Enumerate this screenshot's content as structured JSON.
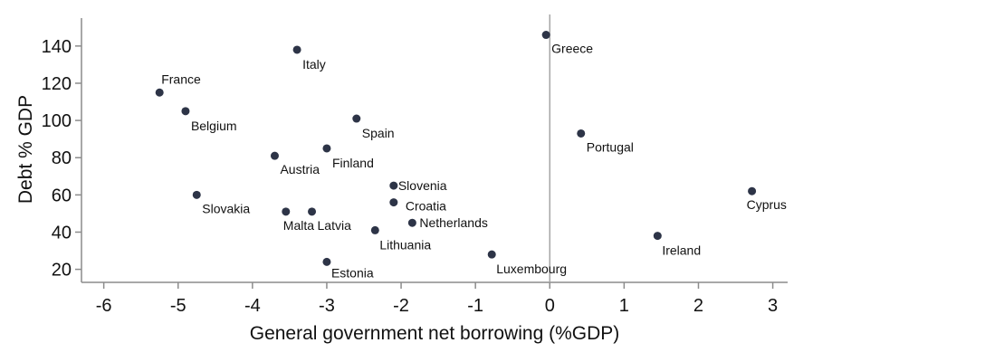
{
  "chart_data": {
    "type": "scatter",
    "title": "",
    "xlabel": "General government net borrowing (%GDP)",
    "ylabel": "Debt % GDP",
    "xlim": [
      -6.3,
      3.2
    ],
    "ylim": [
      13,
      155
    ],
    "xticks": [
      -6,
      -5,
      -4,
      -3,
      -2,
      -1,
      0,
      1,
      2,
      3
    ],
    "yticks": [
      20,
      40,
      60,
      80,
      100,
      120,
      140
    ],
    "grid": false,
    "reference_line_x": 0,
    "colors": {
      "point": "#2d3447",
      "reference_line": "#a6a6a6",
      "axis": "#8c8c8c",
      "text": "#111111"
    },
    "points": [
      {
        "label": "Greece",
        "x": -0.05,
        "y": 146,
        "label_dx": 6,
        "label_dy": 20
      },
      {
        "label": "Italy",
        "x": -3.4,
        "y": 138,
        "label_dx": 6,
        "label_dy": 21
      },
      {
        "label": "France",
        "x": -5.25,
        "y": 115,
        "label_dx": 2,
        "label_dy": -10
      },
      {
        "label": "Belgium",
        "x": -4.9,
        "y": 105,
        "label_dx": 6,
        "label_dy": 21
      },
      {
        "label": "Spain",
        "x": -2.6,
        "y": 101,
        "label_dx": 6,
        "label_dy": 21
      },
      {
        "label": "Portugal",
        "x": 0.42,
        "y": 93,
        "label_dx": 6,
        "label_dy": 20
      },
      {
        "label": "Finland",
        "x": -3.0,
        "y": 85,
        "label_dx": 6,
        "label_dy": 21
      },
      {
        "label": "Austria",
        "x": -3.7,
        "y": 81,
        "label_dx": 6,
        "label_dy": 20
      },
      {
        "label": "Slovenia",
        "x": -2.1,
        "y": 65,
        "label_dx": 5,
        "label_dy": 5
      },
      {
        "label": "Cyprus",
        "x": 2.72,
        "y": 62,
        "label_dx": -6,
        "label_dy": 20
      },
      {
        "label": "Slovakia",
        "x": -4.75,
        "y": 60,
        "label_dx": 6,
        "label_dy": 20
      },
      {
        "label": "Croatia",
        "x": -2.1,
        "y": 56,
        "label_dx": 13,
        "label_dy": 9
      },
      {
        "label": "Malta",
        "x": -3.55,
        "y": 51,
        "label_dx": -3,
        "label_dy": 20
      },
      {
        "label": "Latvia",
        "x": -3.2,
        "y": 51,
        "label_dx": 6,
        "label_dy": 20
      },
      {
        "label": "Netherlands",
        "x": -1.85,
        "y": 45,
        "label_dx": 8,
        "label_dy": 5
      },
      {
        "label": "Lithuania",
        "x": -2.35,
        "y": 41,
        "label_dx": 5,
        "label_dy": 21
      },
      {
        "label": "Ireland",
        "x": 1.45,
        "y": 38,
        "label_dx": 5,
        "label_dy": 21
      },
      {
        "label": "Luxembourg",
        "x": -0.78,
        "y": 28,
        "label_dx": 5,
        "label_dy": 21
      },
      {
        "label": "Estonia",
        "x": -3.0,
        "y": 24,
        "label_dx": 5,
        "label_dy": 17
      }
    ]
  }
}
